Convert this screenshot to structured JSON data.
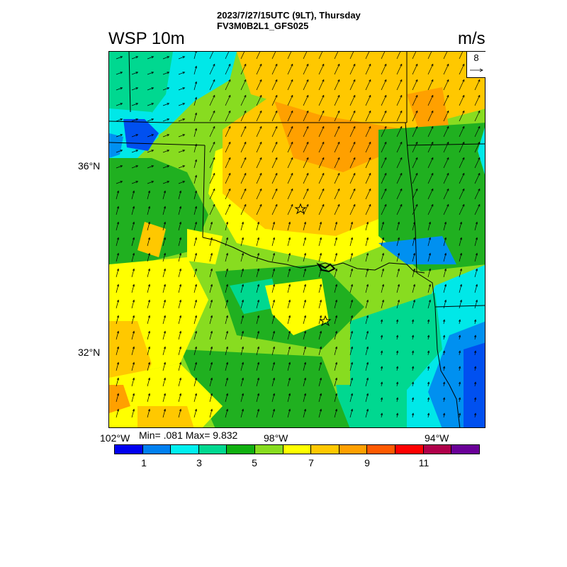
{
  "header": {
    "datetime_line": "2023/7/27/15UTC (9LT), Thursday",
    "model_line": "FV3M0B2L1_GFS025"
  },
  "plot": {
    "variable_title": "WSP 10m",
    "units": "m/s",
    "reference_vector_label": "8",
    "lat_labels": [
      "36°N",
      "32°N"
    ],
    "lon_labels": [
      "102°W",
      "98°W",
      "94°W"
    ],
    "stats": "Min= .081 Max= 9.832"
  },
  "colorbar": {
    "colors": [
      "#0000f0",
      "#0080f0",
      "#00f0f0",
      "#00d890",
      "#10b010",
      "#88dc20",
      "#ffff00",
      "#ffc800",
      "#ffa000",
      "#ff5a00",
      "#ff0000",
      "#b0004a",
      "#6a0098"
    ],
    "labels": [
      "1",
      "3",
      "5",
      "7",
      "9",
      "11"
    ]
  },
  "map_colors": {
    "blue": "#0050f0",
    "light_blue": "#0090f0",
    "cyan": "#00e8e8",
    "teal": "#00d890",
    "green": "#20b020",
    "lime": "#88dc20",
    "yellow": "#ffff00",
    "gold": "#ffc800",
    "orange": "#ffa000",
    "red_orange": "#ff6000"
  }
}
